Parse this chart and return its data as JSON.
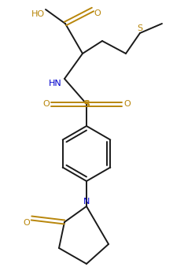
{
  "bg_color": "#ffffff",
  "line_color": "#1a1a1a",
  "atom_colors": {
    "O": "#b8860b",
    "N": "#0000cd",
    "S": "#b8860b",
    "C": "#1a1a1a"
  },
  "figsize": [
    2.2,
    3.53
  ],
  "dpi": 100,
  "lw": 1.4
}
